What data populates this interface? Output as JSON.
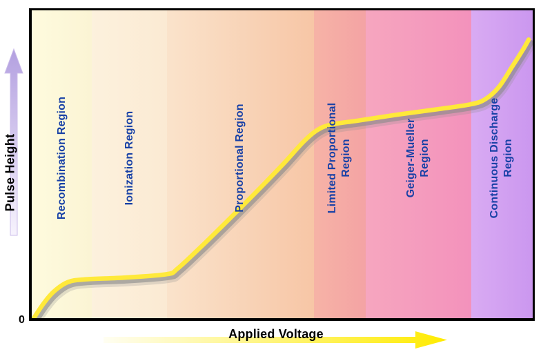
{
  "axes": {
    "x_label": "Applied Voltage",
    "y_label": "Pulse Height",
    "origin_label": "0"
  },
  "colors": {
    "region_label_blue": "#1841a6",
    "curve_yellow": "#ffe93a",
    "curve_shadow": "#8a8a8a",
    "plot_border": "#000000",
    "y_arrow_top": "#b3a0e0",
    "y_arrow_bottom": "#f7f3fd",
    "x_arrow_left": "#fffef2",
    "x_arrow_right": "#ffeb00",
    "region_separator": "rgba(130,130,130,0.45)"
  },
  "chart_data": {
    "type": "line",
    "xlabel": "Applied Voltage",
    "ylabel": "Pulse Height",
    "xlim": [
      0,
      100
    ],
    "ylim": [
      0,
      100
    ],
    "axis_note": "axes carry no numeric tick labels; curve coordinates normalized 0-100 of plot area",
    "grid": false,
    "regions": [
      {
        "label_lines": [
          "Recombination Region"
        ],
        "x_start": 0,
        "x_end": 12,
        "color_left": "#fefbde",
        "color_right": "#fbf4d4"
      },
      {
        "label_lines": [
          "Ionization Region"
        ],
        "x_start": 12,
        "x_end": 27,
        "color_left": "#fcf1dd",
        "color_right": "#fbead3"
      },
      {
        "label_lines": [
          "Proportional Region"
        ],
        "x_start": 27,
        "x_end": 56.3,
        "color_left": "#fae3cb",
        "color_right": "#f7c6a6"
      },
      {
        "label_lines": [
          "Limited Proportional",
          "Region"
        ],
        "x_start": 56.3,
        "x_end": 66.6,
        "color_left": "#f6b3a6",
        "color_right": "#f4a3a4"
      },
      {
        "label_lines": [
          "Geiger-Mueller",
          "Region"
        ],
        "x_start": 66.6,
        "x_end": 87.7,
        "color_left": "#f6a6bf",
        "color_right": "#f392bc"
      },
      {
        "label_lines": [
          "Continuous Discharge",
          "Region"
        ],
        "x_start": 87.7,
        "x_end": 100,
        "color_left": "#d9abf3",
        "color_right": "#cb97ef"
      }
    ],
    "curve": [
      [
        0.4,
        0
      ],
      [
        2.5,
        5.1
      ],
      [
        4.5,
        8.8
      ],
      [
        7.2,
        11.7
      ],
      [
        10.6,
        12.6
      ],
      [
        18.8,
        13.2
      ],
      [
        27.0,
        14.3
      ],
      [
        29.1,
        16.1
      ],
      [
        33.8,
        23.2
      ],
      [
        39.3,
        32.0
      ],
      [
        44.7,
        40.8
      ],
      [
        50.2,
        50.1
      ],
      [
        54.3,
        57.4
      ],
      [
        57.0,
        61.1
      ],
      [
        59.8,
        62.9
      ],
      [
        65.2,
        64.2
      ],
      [
        73.4,
        66.2
      ],
      [
        81.6,
        68.0
      ],
      [
        87.7,
        69.5
      ],
      [
        90.5,
        71.1
      ],
      [
        93.2,
        75.0
      ],
      [
        95.9,
        81.7
      ],
      [
        98.2,
        87.6
      ],
      [
        99.2,
        90.5
      ]
    ]
  }
}
